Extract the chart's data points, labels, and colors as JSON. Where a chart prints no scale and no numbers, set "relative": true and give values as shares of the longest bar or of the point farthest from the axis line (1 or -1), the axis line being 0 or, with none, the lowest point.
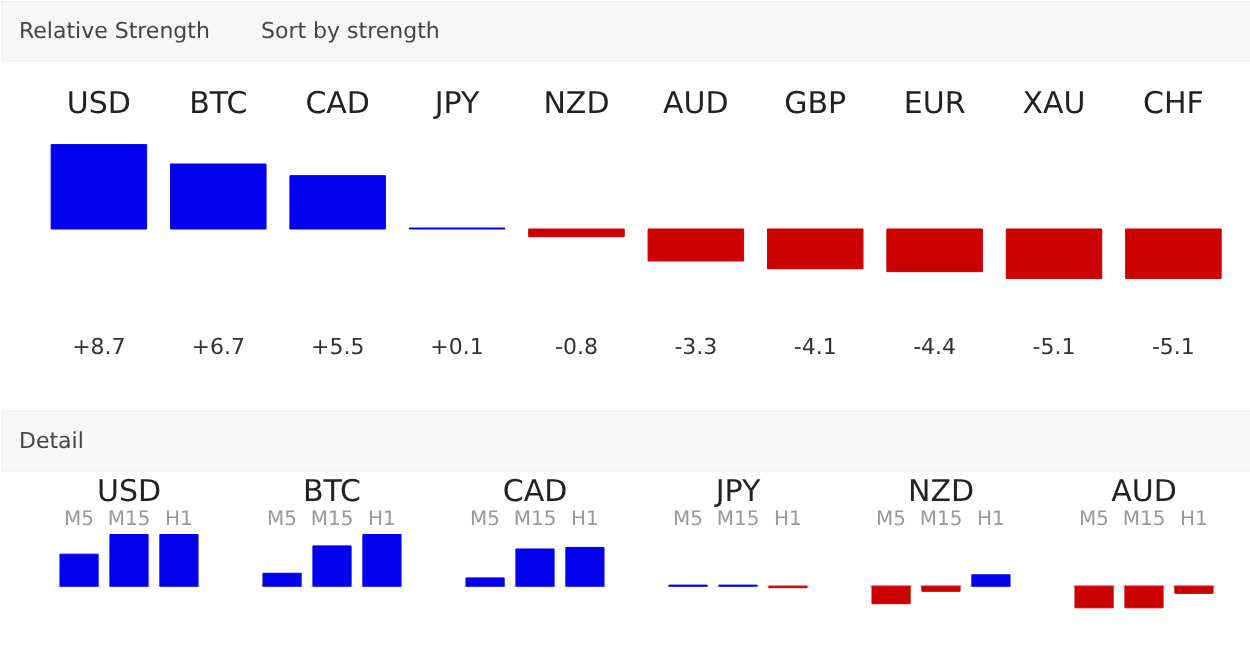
{
  "chart_data": [
    {
      "type": "bar",
      "title": "Relative Strength",
      "annotations": [
        "Sort by strength"
      ],
      "categories": [
        "USD",
        "BTC",
        "CAD",
        "JPY",
        "NZD",
        "AUD",
        "GBP",
        "EUR",
        "XAU",
        "CHF"
      ],
      "values": [
        8.7,
        6.7,
        5.5,
        0.1,
        -0.8,
        -3.3,
        -4.1,
        -4.4,
        -5.1,
        -5.1
      ],
      "value_labels": [
        "+8.7",
        "+6.7",
        "+5.5",
        "+0.1",
        "-0.8",
        "-3.3",
        "-4.1",
        "-4.4",
        "-5.1",
        "-5.1"
      ],
      "colors": [
        "#0000ee",
        "#0000ee",
        "#0000ee",
        "#0000ee",
        "#cc0000",
        "#cc0000",
        "#cc0000",
        "#cc0000",
        "#cc0000",
        "#cc0000"
      ]
    },
    {
      "type": "bar",
      "title": "Detail",
      "categories": [
        "USD",
        "BTC",
        "CAD",
        "JPY",
        "NZD",
        "AUD"
      ],
      "relative": true,
      "series": [
        {
          "name": "M5",
          "values": [
            0.62,
            0.25,
            0.16,
            0.02,
            -0.34,
            -0.42
          ],
          "colors": [
            "#0000ee",
            "#0000ee",
            "#0000ee",
            "#0000ee",
            "#cc0000",
            "#cc0000"
          ]
        },
        {
          "name": "M15",
          "values": [
            1.0,
            0.78,
            0.72,
            0.02,
            -0.1,
            -0.42
          ],
          "colors": [
            "#0000ee",
            "#0000ee",
            "#0000ee",
            "#0000ee",
            "#cc0000",
            "#cc0000"
          ]
        },
        {
          "name": "H1",
          "values": [
            1.0,
            1.0,
            0.75,
            -0.03,
            0.22,
            -0.14
          ],
          "colors": [
            "#0000ee",
            "#0000ee",
            "#0000ee",
            "#cc0000",
            "#0000ee",
            "#cc0000"
          ]
        }
      ]
    }
  ]
}
